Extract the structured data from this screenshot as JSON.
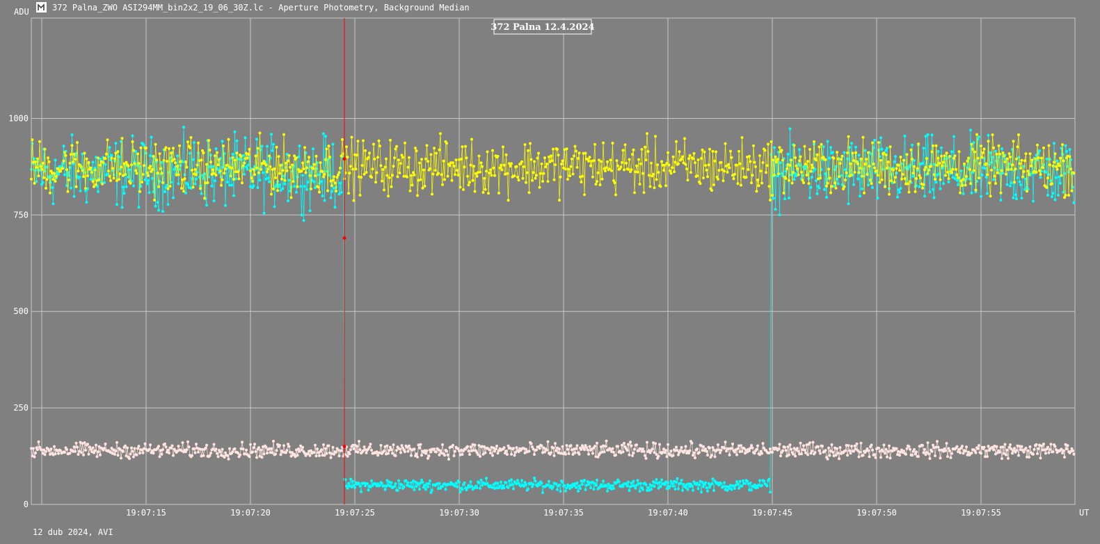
{
  "window": {
    "title": "372 Palna_ZWO ASI294MM_bin2x2_19_06_30Z.lc - Aperture Photometry, Background Median",
    "icon": "app-logo-icon"
  },
  "footer": {
    "text": "12 dub 2024, AVI"
  },
  "colors": {
    "background": "#808080",
    "grid": "#c8c8c8",
    "series_cyan": "#00ffff",
    "series_yellow": "#ffff00",
    "series_pink": "#ffe4e1",
    "marker_red": "#ff0000"
  },
  "chart_data": {
    "type": "scatter",
    "title": "372 Palna  12.4.2024",
    "ylabel": "ADU",
    "xlabel": "UT",
    "ylim": [
      0,
      1260
    ],
    "xlim": [
      "19:07:09.5",
      "19:07:59.5"
    ],
    "yticks": [
      0,
      250,
      500,
      750,
      1000
    ],
    "xticks": [
      "19:07:15",
      "19:07:20",
      "19:07:25",
      "19:07:30",
      "19:07:35",
      "19:07:40",
      "19:07:45",
      "19:07:50",
      "19:07:55"
    ],
    "grid": true,
    "marker_time": "19:07:24.5",
    "occultation": {
      "start": "19:07:24.5",
      "end": "19:07:44.9"
    },
    "series": [
      {
        "color": "#00ffff",
        "baseline_mean": 860,
        "baseline_spread": 70,
        "occulted_mean": 50,
        "occulted_spread": 12,
        "highlighted_points": [
          {
            "time": "19:07:24.5",
            "value": 895
          },
          {
            "time": "19:07:24.5",
            "value": 690
          },
          {
            "time": "19:07:24.5",
            "value": 150
          }
        ]
      },
      {
        "color": "#ffff00",
        "mean": 875,
        "spread": 55
      },
      {
        "color": "#ffe4e1",
        "mean": 140,
        "spread": 15
      }
    ]
  }
}
